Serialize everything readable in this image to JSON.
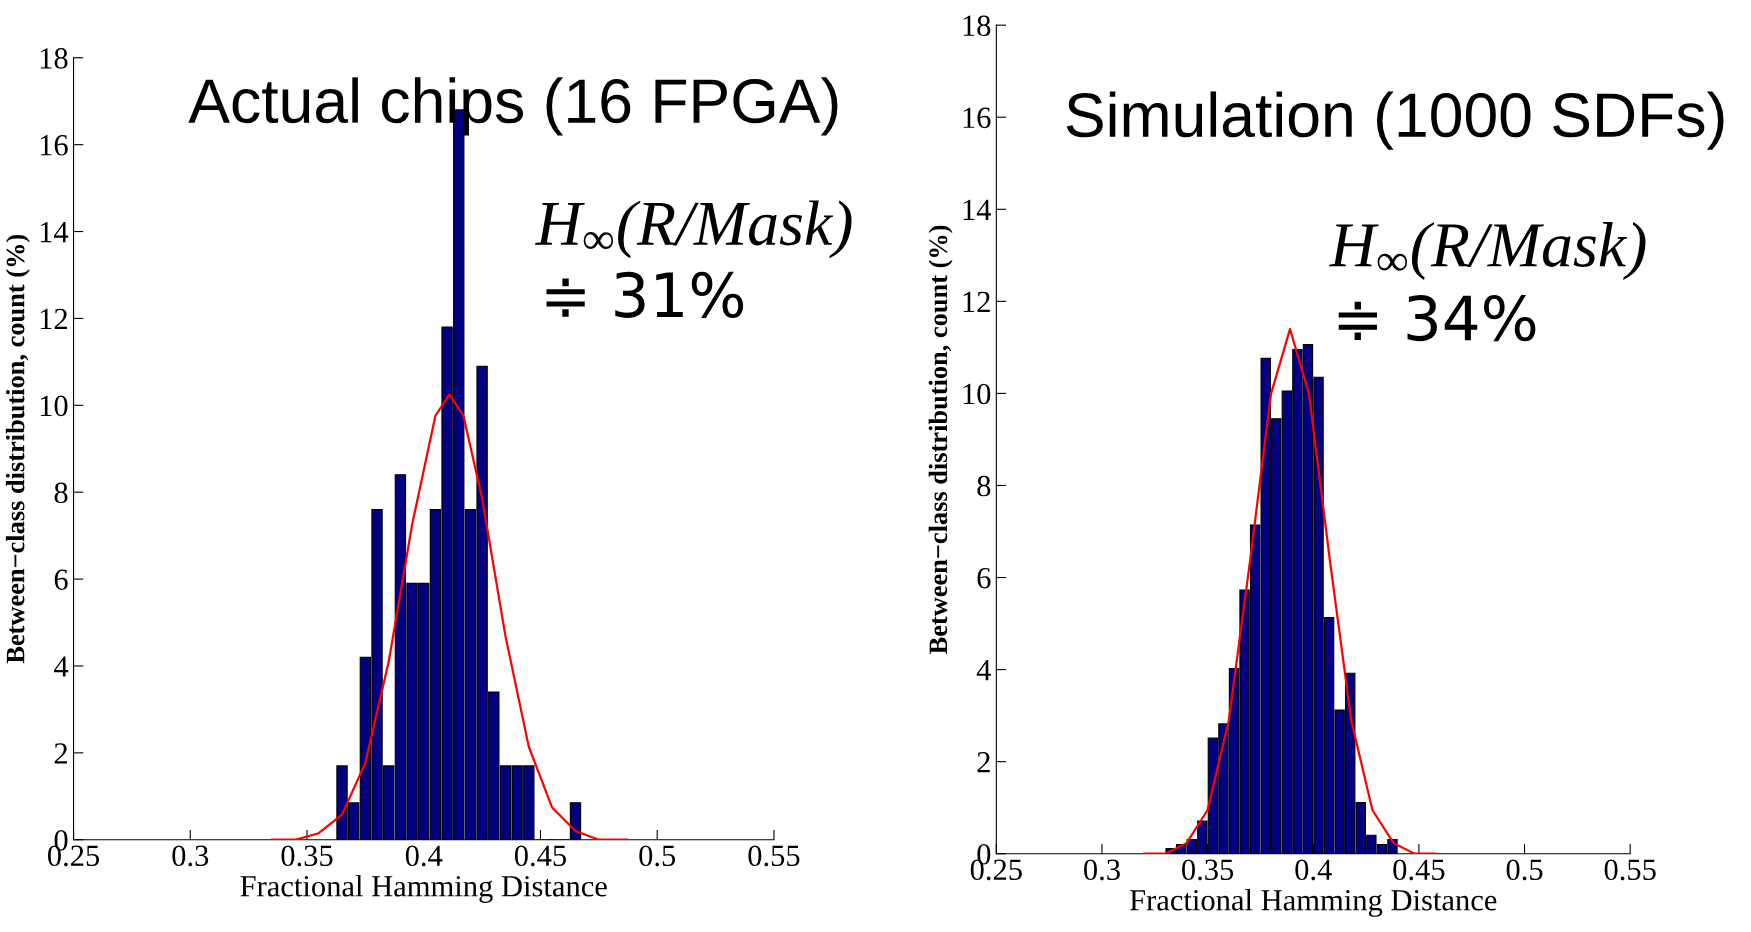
{
  "chart_data": [
    {
      "type": "histogram",
      "title": "Actual chips (16 FPGA)",
      "xlabel": "Fractional Hamming Distance",
      "ylabel": "Between−class distribution, count (%)",
      "bins": [
        0.3625,
        0.3675,
        0.3725,
        0.3775,
        0.3825,
        0.3875,
        0.3925,
        0.3975,
        0.4025,
        0.4075,
        0.4125,
        0.4175,
        0.4225,
        0.4275,
        0.4325,
        0.4375,
        0.4425,
        0.4475,
        0.4525,
        0.4575,
        0.4625,
        0.4675
      ],
      "values": [
        1.7,
        0.85,
        4.2,
        7.6,
        1.7,
        8.4,
        5.9,
        5.9,
        7.6,
        11.8,
        16.8,
        7.6,
        10.9,
        3.4,
        1.7,
        1.7,
        1.7,
        0,
        0,
        0,
        0.85
      ],
      "color": "#000080",
      "series": [
        {
          "type": "line",
          "color": "#ff0000",
          "x": [
            0.335,
            0.345,
            0.355,
            0.365,
            0.375,
            0.385,
            0.395,
            0.405,
            0.411,
            0.417,
            0.425,
            0.435,
            0.445,
            0.455,
            0.465,
            0.475,
            0.487
          ],
          "values": [
            0,
            0,
            0.15,
            0.58,
            1.77,
            4.1,
            7.25,
            9.76,
            10.25,
            9.76,
            7.86,
            4.69,
            2.14,
            0.74,
            0.2,
            0,
            0
          ]
        }
      ],
      "annotations": [
        "H$_{∞}$(R/Mask)",
        "≑ 31%"
      ],
      "xlim": [
        0.25,
        0.55
      ],
      "xticks": [
        {
          "value": 0.25,
          "label": "0.25"
        },
        {
          "value": 0.3,
          "label": "0.3"
        },
        {
          "value": 0.35,
          "label": "0.35"
        },
        {
          "value": 0.4,
          "label": "0.4"
        },
        {
          "value": 0.45,
          "label": "0.45"
        },
        {
          "value": 0.5,
          "label": "0.5"
        },
        {
          "value": 0.55,
          "label": "0.55"
        }
      ],
      "ylim": [
        0,
        18
      ],
      "yticks": [
        0,
        2,
        4,
        6,
        8,
        10,
        12,
        14,
        16,
        18
      ],
      "grid": false,
      "legend": false
    },
    {
      "type": "histogram",
      "title": "Simulation (1000 SDFs)",
      "xlabel": "Fractional Hamming Distance",
      "ylabel": "Between−class distribution, count (%)",
      "bins": [
        0.33,
        0.335,
        0.34,
        0.345,
        0.35,
        0.355,
        0.36,
        0.365,
        0.37,
        0.375,
        0.38,
        0.385,
        0.39,
        0.395,
        0.4,
        0.405,
        0.41,
        0.415,
        0.42,
        0.425,
        0.43,
        0.435,
        0.44
      ],
      "values": [
        0.11,
        0.2,
        0.31,
        0.71,
        2.51,
        2.82,
        4.02,
        5.73,
        7.14,
        10.76,
        9.45,
        10.05,
        10.95,
        11.06,
        10.35,
        5.13,
        3.12,
        3.92,
        1.11,
        0.4,
        0.2,
        0.31
      ],
      "color": "#000080",
      "series": [
        {
          "type": "line",
          "color": "#ff0000",
          "x": [
            0.32,
            0.33,
            0.34,
            0.35,
            0.36,
            0.37,
            0.38,
            0.389,
            0.398,
            0.408,
            0.418,
            0.428,
            0.438,
            0.448,
            0.458
          ],
          "values": [
            0,
            0,
            0.23,
            0.95,
            2.89,
            6.33,
            9.99,
            11.4,
            9.99,
            6.33,
            2.89,
            0.95,
            0.23,
            0,
            0
          ]
        }
      ],
      "annotations": [
        "H$_{∞}$(R/Mask)",
        "≑ 34%"
      ],
      "xlim": [
        0.25,
        0.55
      ],
      "xticks": [
        {
          "value": 0.25,
          "label": "0.25"
        },
        {
          "value": 0.3,
          "label": "0.3"
        },
        {
          "value": 0.35,
          "label": "0.35"
        },
        {
          "value": 0.4,
          "label": "0.4"
        },
        {
          "value": 0.45,
          "label": "0.45"
        },
        {
          "value": 0.5,
          "label": "0.5"
        },
        {
          "value": 0.55,
          "label": "0.55"
        }
      ],
      "ylim": [
        0,
        18
      ],
      "yticks": [
        0,
        2,
        4,
        6,
        8,
        10,
        12,
        14,
        16,
        18
      ],
      "grid": false,
      "legend": false
    }
  ]
}
